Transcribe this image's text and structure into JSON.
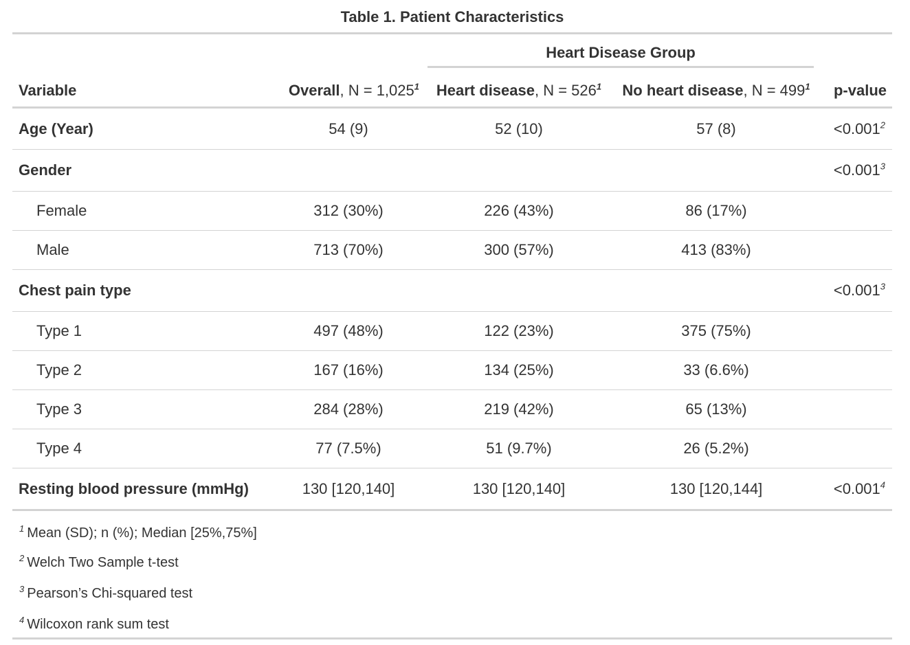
{
  "caption": "Table 1. Patient Characteristics",
  "header": {
    "spanner": "Heart Disease Group",
    "variable": "Variable",
    "overall": {
      "label": "Overall",
      "n": ", N = 1,025",
      "note": "1"
    },
    "heart": {
      "label": "Heart disease",
      "n": ", N = 526",
      "note": "1"
    },
    "noheart": {
      "label": "No heart disease",
      "n": ", N = 499",
      "note": "1"
    },
    "pvalue": "p-value"
  },
  "rows": [
    {
      "label": "Age (Year)",
      "overall": "54 (9)",
      "heart": "52 (10)",
      "noheart": "57 (8)",
      "p": "<0.001",
      "pnote": "2"
    },
    {
      "label": "Gender",
      "overall": "",
      "heart": "",
      "noheart": "",
      "p": "<0.001",
      "pnote": "3"
    },
    {
      "label": "Female",
      "overall": "312 (30%)",
      "heart": "226 (43%)",
      "noheart": "86 (17%)",
      "p": "",
      "pnote": ""
    },
    {
      "label": "Male",
      "overall": "713 (70%)",
      "heart": "300 (57%)",
      "noheart": "413 (83%)",
      "p": "",
      "pnote": ""
    },
    {
      "label": "Chest pain type",
      "overall": "",
      "heart": "",
      "noheart": "",
      "p": "<0.001",
      "pnote": "3"
    },
    {
      "label": "Type 1",
      "overall": "497 (48%)",
      "heart": "122 (23%)",
      "noheart": "375 (75%)",
      "p": "",
      "pnote": ""
    },
    {
      "label": "Type 2",
      "overall": "167 (16%)",
      "heart": "134 (25%)",
      "noheart": "33 (6.6%)",
      "p": "",
      "pnote": ""
    },
    {
      "label": "Type 3",
      "overall": "284 (28%)",
      "heart": "219 (42%)",
      "noheart": "65 (13%)",
      "p": "",
      "pnote": ""
    },
    {
      "label": "Type 4",
      "overall": "77 (7.5%)",
      "heart": "51 (9.7%)",
      "noheart": "26 (5.2%)",
      "p": "",
      "pnote": ""
    },
    {
      "label": "Resting blood pressure (mmHg)",
      "overall": "130 [120,140]",
      "heart": "130 [120,140]",
      "noheart": "130 [120,144]",
      "p": "<0.001",
      "pnote": "4"
    }
  ],
  "footnotes": [
    {
      "mark": "1",
      "text": "Mean (SD); n (%); Median [25%,75%]"
    },
    {
      "mark": "2",
      "text": "Welch Two Sample t-test"
    },
    {
      "mark": "3",
      "text": "Pearson’s Chi-squared test"
    },
    {
      "mark": "4",
      "text": "Wilcoxon rank sum test"
    }
  ]
}
